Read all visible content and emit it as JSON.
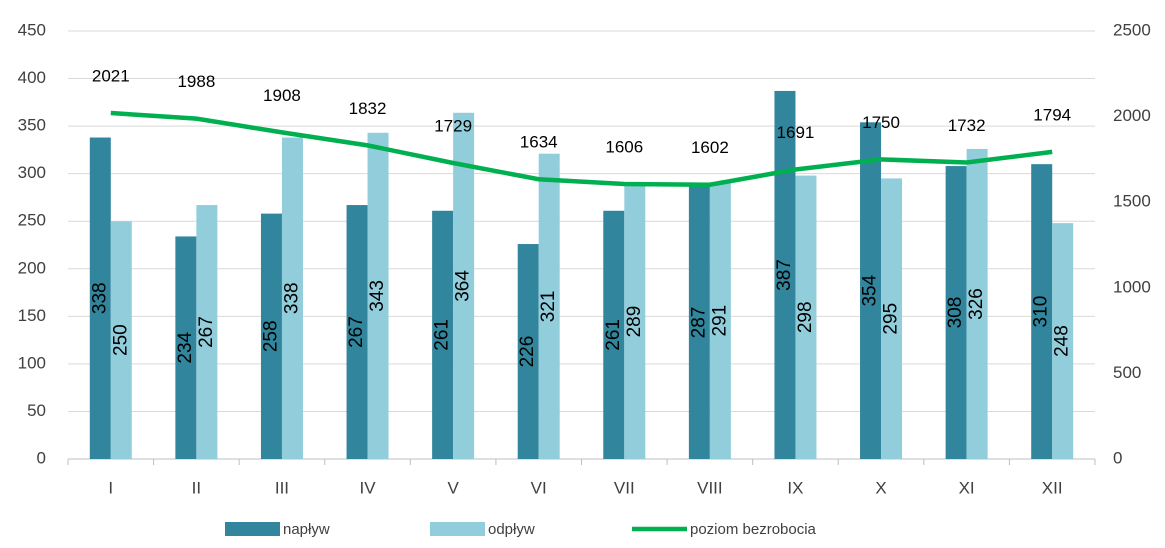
{
  "chart_data": {
    "type": "bar-line",
    "categories": [
      "I",
      "II",
      "III",
      "IV",
      "V",
      "VI",
      "VII",
      "VIII",
      "IX",
      "X",
      "XI",
      "XII"
    ],
    "series": [
      {
        "name": "napływ",
        "color": "#31859c",
        "type": "bar",
        "values": [
          338,
          234,
          258,
          267,
          261,
          226,
          261,
          287,
          387,
          354,
          308,
          310
        ]
      },
      {
        "name": "odpływ",
        "color": "#92cddc",
        "type": "bar",
        "values": [
          250,
          267,
          338,
          343,
          364,
          321,
          289,
          291,
          298,
          295,
          326,
          248
        ]
      },
      {
        "name": "poziom bezrobocia",
        "color": "#00b050",
        "type": "line",
        "axis": "y2",
        "values": [
          2021,
          1988,
          1908,
          1832,
          1729,
          1634,
          1606,
          1602,
          1691,
          1750,
          1732,
          1794
        ]
      }
    ],
    "ylim": [
      0,
      450
    ],
    "yticks": [
      0,
      50,
      100,
      150,
      200,
      250,
      300,
      350,
      400,
      450
    ],
    "y2lim": [
      0,
      2500
    ],
    "y2ticks": [
      0,
      500,
      1000,
      1500,
      2000,
      2500
    ],
    "grid": true,
    "legend": "bottom"
  }
}
